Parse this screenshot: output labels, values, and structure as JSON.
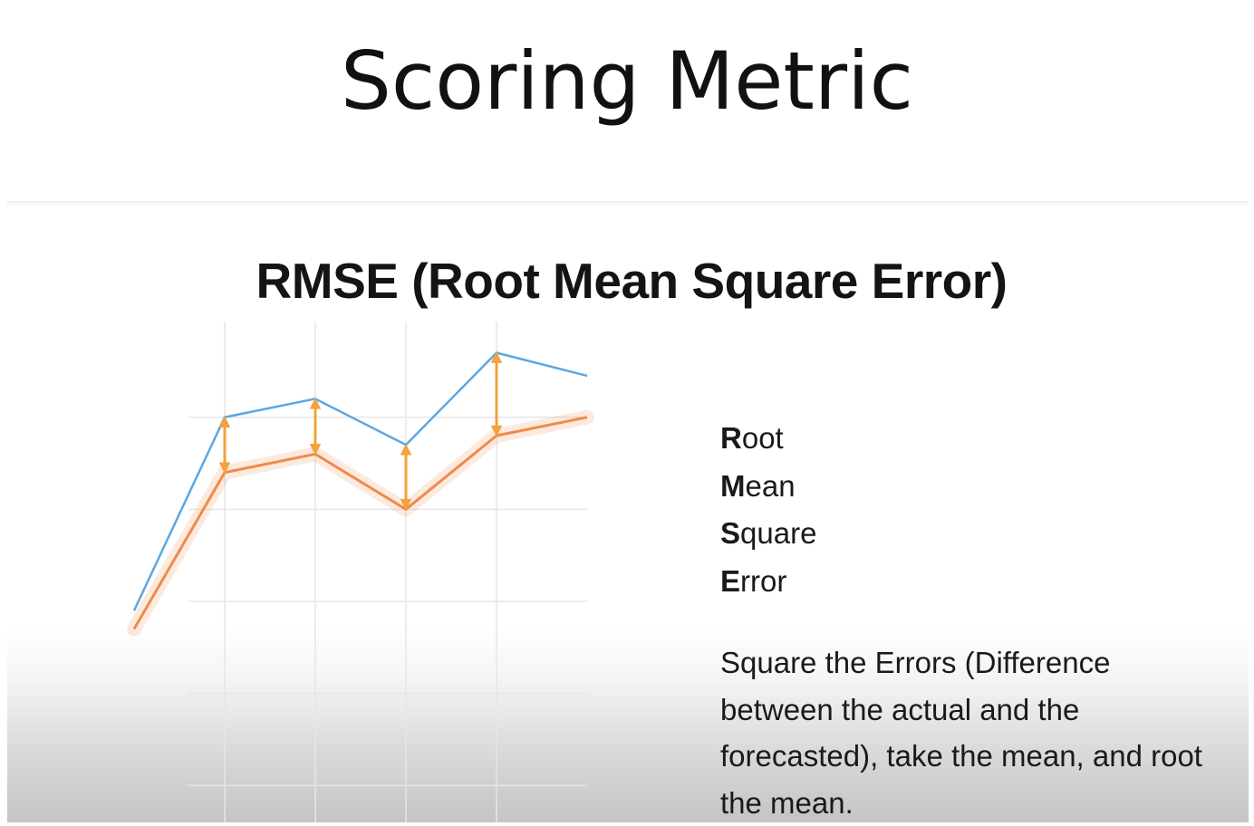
{
  "slide": {
    "title": "Scoring Metric"
  },
  "video": {
    "heading": "RMSE (Root Mean Square Error)",
    "acronym": [
      {
        "initial": "R",
        "rest": "oot"
      },
      {
        "initial": "M",
        "rest": "ean"
      },
      {
        "initial": "S",
        "rest": "quare"
      },
      {
        "initial": "E",
        "rest": "rror"
      }
    ],
    "description": "Square the Errors (Difference between the actual and the forecasted), take the mean, and root the mean."
  },
  "colors": {
    "actual": "#5ea6e0",
    "forecast": "#f08a4b",
    "error_arrow": "#f3a23c",
    "grid": "#e6e6e6"
  },
  "chart_data": {
    "type": "line",
    "x": [
      0,
      1,
      2,
      3,
      4,
      5
    ],
    "series": [
      {
        "values": [
          1.9,
          4.0,
          4.2,
          3.7,
          4.7,
          4.45
        ]
      },
      {
        "values": [
          1.7,
          3.4,
          3.6,
          3.0,
          3.8,
          4.0
        ]
      }
    ],
    "error_markers_at": [
      1,
      2,
      3,
      4
    ],
    "xlim": [
      0,
      5
    ],
    "ylim": [
      -0.4,
      5
    ]
  }
}
